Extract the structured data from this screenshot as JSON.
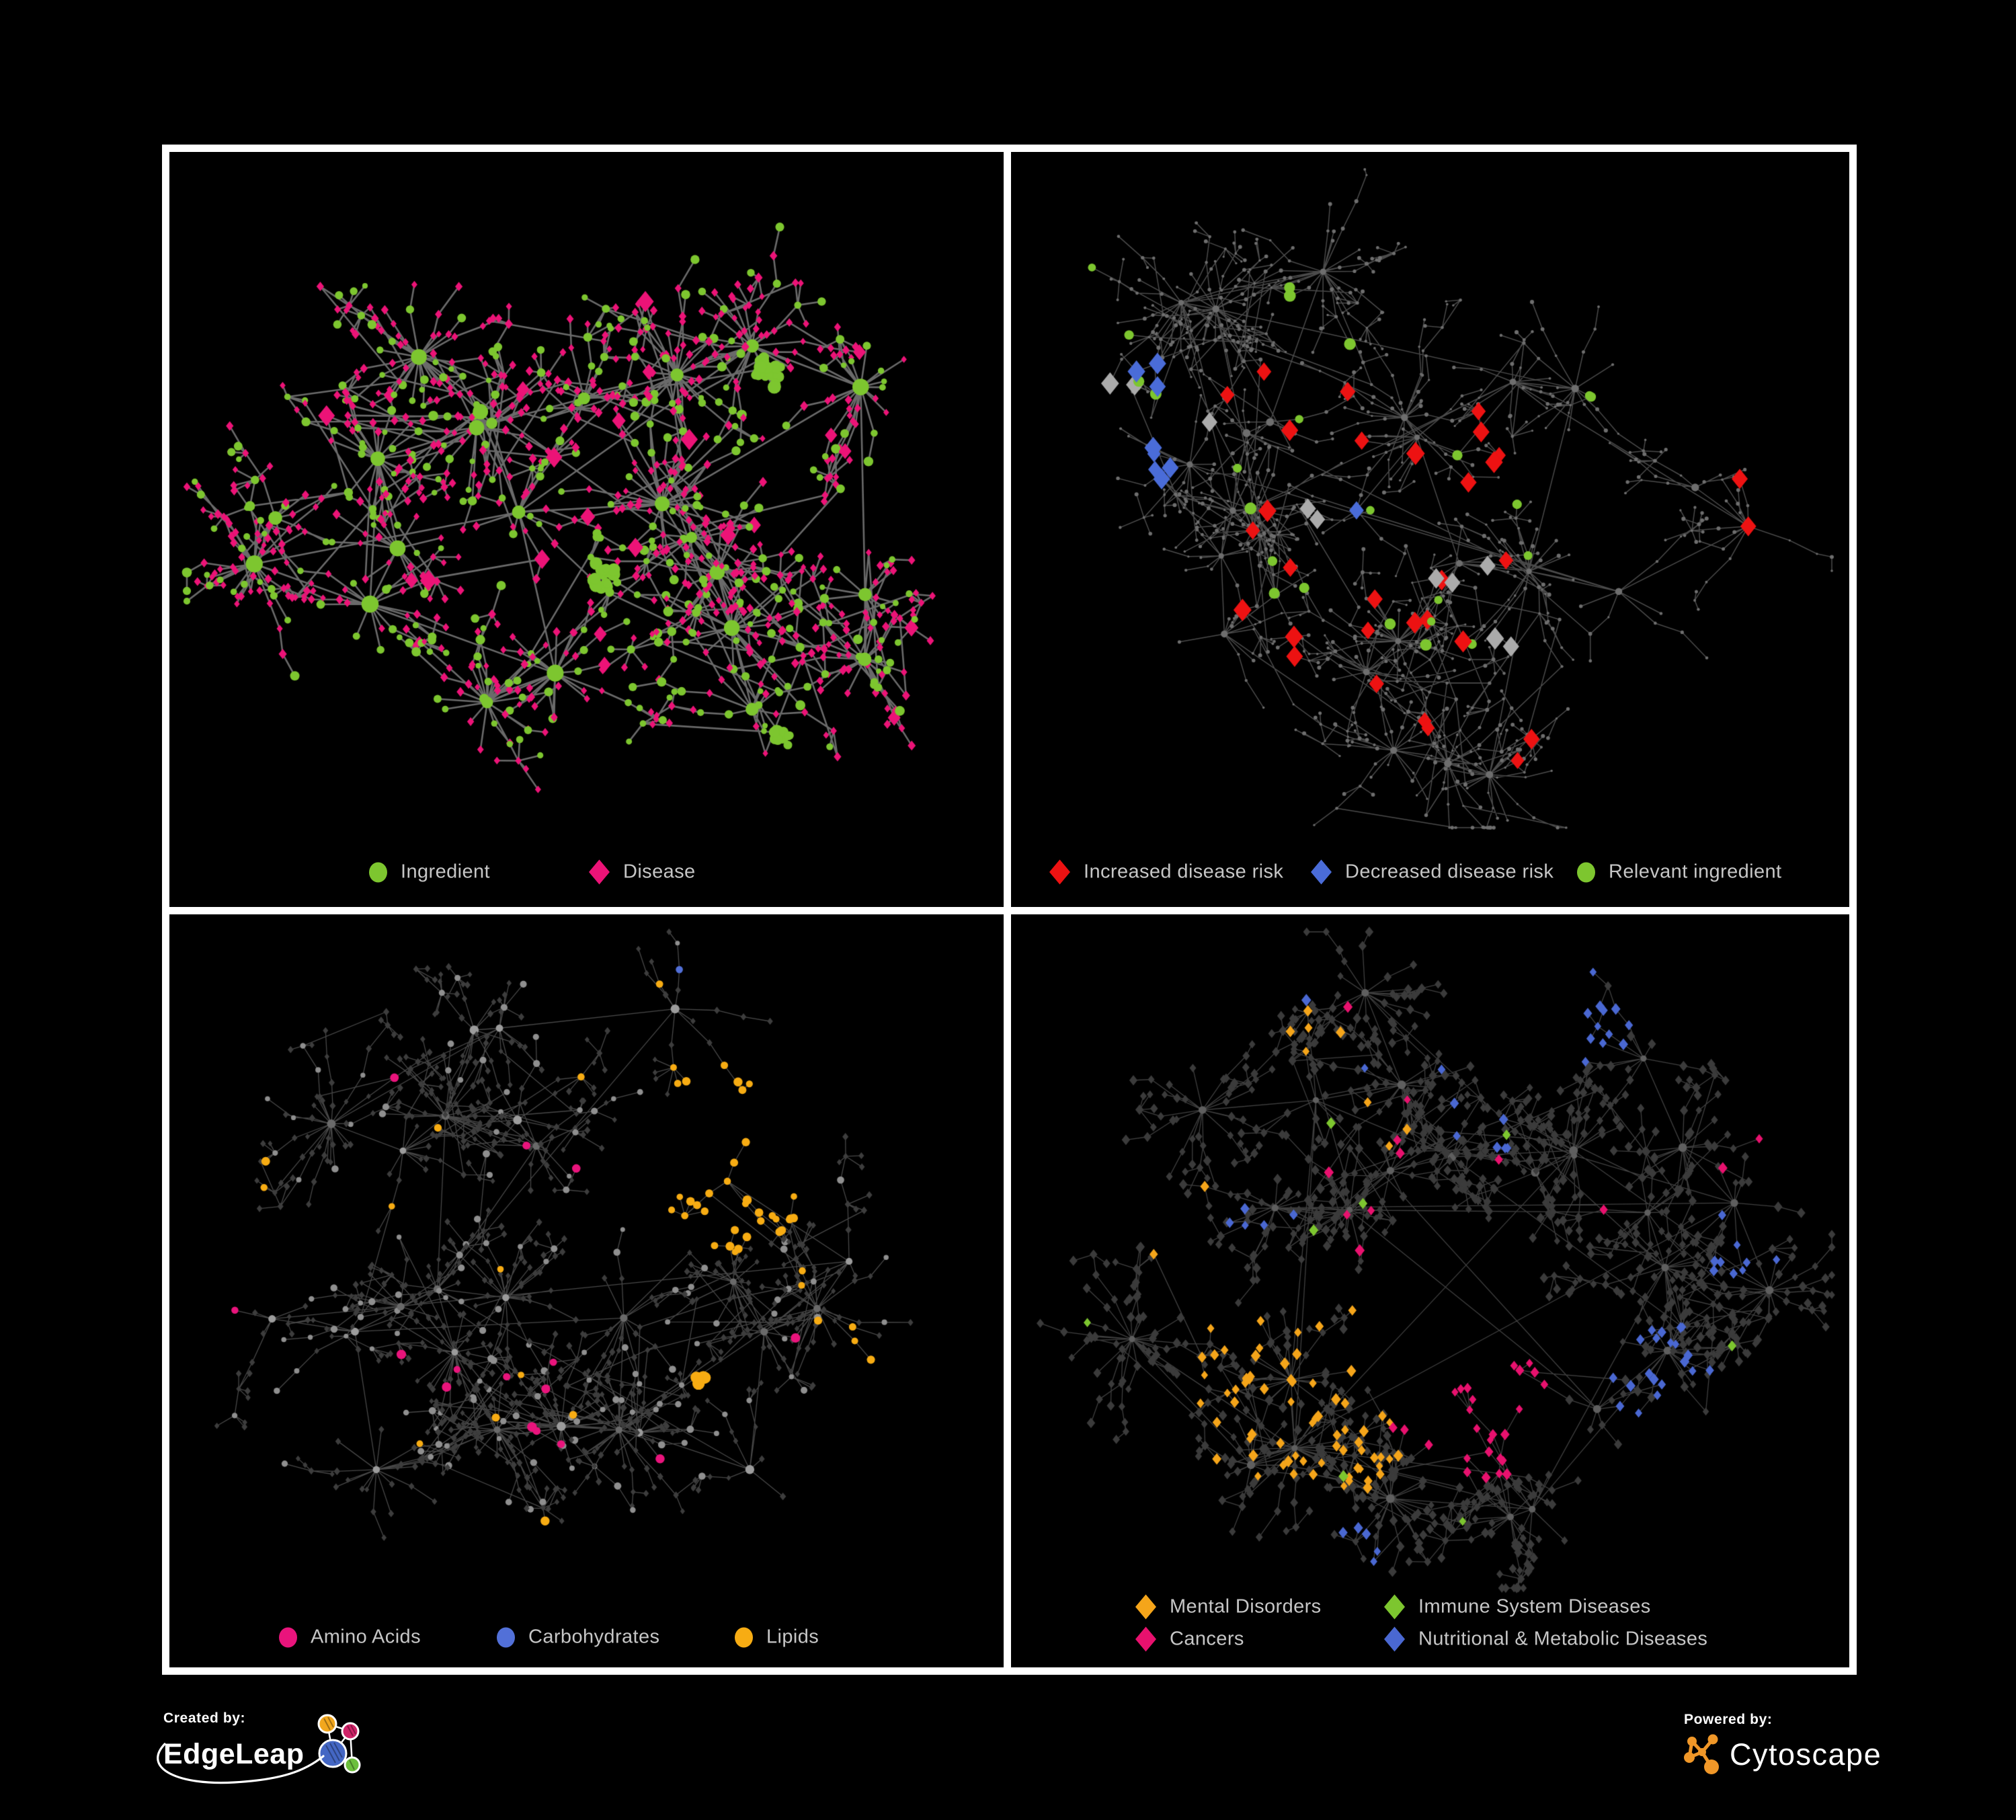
{
  "page": {
    "background": "#000000",
    "frame_color": "#ffffff"
  },
  "panels": [
    {
      "name": "ingredient-disease-network",
      "legend": [
        {
          "label": "Ingredient",
          "shape": "circle",
          "color": "#7dc62f"
        },
        {
          "label": "Disease",
          "shape": "diamond",
          "color": "#ec1377"
        }
      ],
      "network": {
        "type": "node-link",
        "edge_color": "#7d7d7d",
        "node_kinds": [
          {
            "kind": "ingredient",
            "shape": "circle",
            "color": "#7dc62f",
            "approx_count": 220
          },
          {
            "kind": "disease",
            "shape": "diamond",
            "color": "#ec1377",
            "approx_count": 420
          }
        ]
      }
    },
    {
      "name": "disease-risk-network",
      "legend": [
        {
          "label": "Increased disease risk",
          "shape": "diamond",
          "color": "#ed1212"
        },
        {
          "label": "Decreased disease risk",
          "shape": "diamond",
          "color": "#4a6cd8"
        },
        {
          "label": "Relevant ingredient",
          "shape": "circle",
          "color": "#7dc62f"
        }
      ],
      "network": {
        "type": "node-link",
        "edge_color": "#7d7d7d",
        "base_node_color": "#6e6e6e",
        "node_kinds": [
          {
            "kind": "increased-risk",
            "shape": "diamond",
            "color": "#ed1212",
            "approx_count": 34
          },
          {
            "kind": "decreased-risk",
            "shape": "diamond",
            "color": "#4a6cd8",
            "approx_count": 11
          },
          {
            "kind": "other-association",
            "shape": "diamond",
            "color": "#ababab",
            "approx_count": 11
          },
          {
            "kind": "relevant-ingredient",
            "shape": "circle",
            "color": "#7dc62f",
            "approx_count": 30
          }
        ]
      }
    },
    {
      "name": "nutrient-class-network",
      "legend": [
        {
          "label": "Amino Acids",
          "shape": "circle",
          "color": "#e9147c"
        },
        {
          "label": "Carbohydrates",
          "shape": "circle",
          "color": "#5270d8"
        },
        {
          "label": "Lipids",
          "shape": "circle",
          "color": "#f7ac13"
        }
      ],
      "network": {
        "type": "node-link",
        "edge_color": "#9a9a9a",
        "base_node_color": "#9c9c9c",
        "node_kinds": [
          {
            "kind": "amino-acids",
            "shape": "circle",
            "color": "#e9147c",
            "approx_count": 18
          },
          {
            "kind": "carbohydrates",
            "shape": "circle",
            "color": "#5270d8",
            "approx_count": 13
          },
          {
            "kind": "lipids",
            "shape": "circle",
            "color": "#f7ac13",
            "approx_count": 60
          },
          {
            "kind": "other",
            "shape": "diamond",
            "color": "#3d3d3d",
            "approx_count": 500
          }
        ]
      }
    },
    {
      "name": "disease-class-network",
      "legend": [
        {
          "label": "Mental Disorders",
          "shape": "diamond",
          "color": "#f5a51a"
        },
        {
          "label": "Immune System Diseases",
          "shape": "diamond",
          "color": "#7dc62f"
        },
        {
          "label": "Cancers",
          "shape": "diamond",
          "color": "#e8116e"
        },
        {
          "label": "Nutritional & Metabolic Diseases",
          "shape": "diamond",
          "color": "#4a68d2"
        }
      ],
      "network": {
        "type": "node-link",
        "edge_color": "#9a9a9a",
        "base_node_color": "#3b3b3b",
        "node_kinds": [
          {
            "kind": "mental-disorders",
            "shape": "diamond",
            "color": "#f5a51a",
            "approx_count": 88
          },
          {
            "kind": "immune-system-diseases",
            "shape": "diamond",
            "color": "#7dc62f",
            "approx_count": 8
          },
          {
            "kind": "cancers",
            "shape": "diamond",
            "color": "#e8116e",
            "approx_count": 61
          },
          {
            "kind": "nutritional-metabolic-diseases",
            "shape": "diamond",
            "color": "#4a68d2",
            "approx_count": 76
          },
          {
            "kind": "other",
            "shape": "diamond",
            "color": "#3b3b3b",
            "approx_count": 550
          }
        ]
      }
    }
  ],
  "footer": {
    "created_by_label": "Created by:",
    "created_by_name": "EdgeLeap",
    "powered_by_label": "Powered by:",
    "powered_by_name": "Cytoscape",
    "cytoscape_orange": "#f09728",
    "edgeleap_glyph_colors": {
      "blue": "#4467c4",
      "orange": "#f2a71e",
      "magenta": "#cf2368",
      "green": "#6cbf3c"
    }
  }
}
